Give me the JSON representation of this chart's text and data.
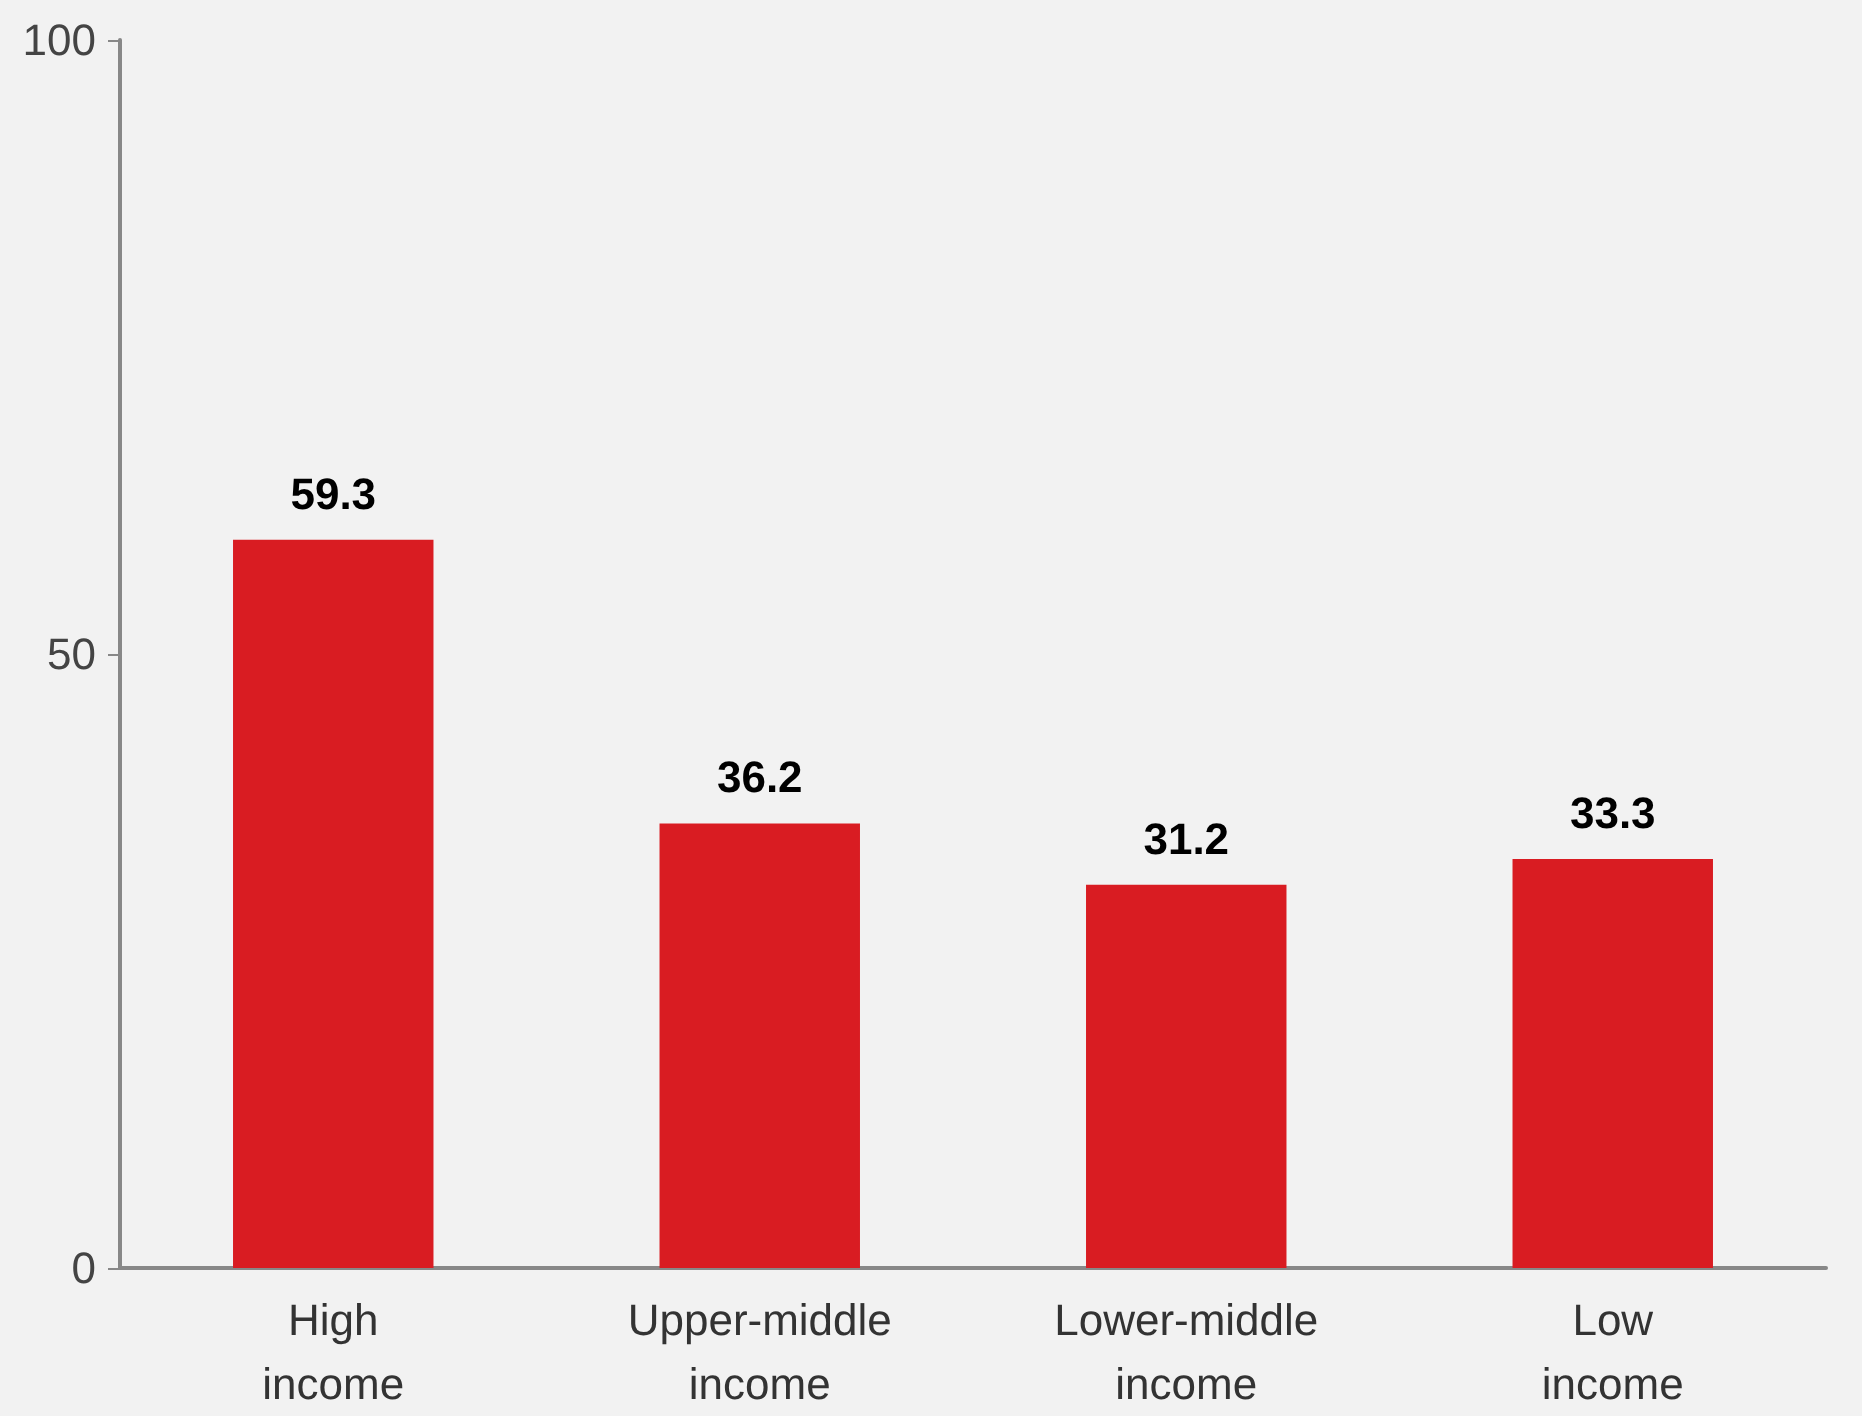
{
  "chart_data": {
    "type": "bar",
    "categories": [
      "High income",
      "Upper-middle income",
      "Lower-middle income",
      "Low income"
    ],
    "values": [
      59.3,
      36.2,
      31.2,
      33.3
    ],
    "color": "#d91c22",
    "ylim": [
      0,
      100
    ],
    "yticks": [
      0,
      50,
      100
    ],
    "data_labels": true
  }
}
